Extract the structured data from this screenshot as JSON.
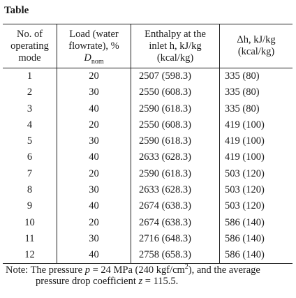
{
  "caption": "Table",
  "headers": {
    "mode": [
      "No. of",
      "operating",
      "mode"
    ],
    "load": [
      "Load (water",
      "flowrate), %"
    ],
    "load_symbol": "D",
    "load_symbol_sub": "nom",
    "enthalpy": [
      "Enthalpy at the",
      "inlet h, kJ/kg",
      "(kcal/kg)"
    ],
    "delta_h": [
      "Δh, kJ/kg",
      "(kcal/kg)"
    ]
  },
  "rows": [
    {
      "mode": "1",
      "load": "20",
      "enthalpy": "2507 (598.3)",
      "delta_h": "335 (80)"
    },
    {
      "mode": "2",
      "load": "30",
      "enthalpy": "2550 (608.3)",
      "delta_h": "335 (80)"
    },
    {
      "mode": "3",
      "load": "40",
      "enthalpy": "2590 (618.3)",
      "delta_h": "335 (80)"
    },
    {
      "mode": "4",
      "load": "20",
      "enthalpy": "2550 (608.3)",
      "delta_h": "419 (100)"
    },
    {
      "mode": "5",
      "load": "30",
      "enthalpy": "2590 (618.3)",
      "delta_h": "419 (100)"
    },
    {
      "mode": "6",
      "load": "40",
      "enthalpy": "2633 (628.3)",
      "delta_h": "419 (100)"
    },
    {
      "mode": "7",
      "load": "20",
      "enthalpy": "2590 (618.3)",
      "delta_h": "503 (120)"
    },
    {
      "mode": "8",
      "load": "30",
      "enthalpy": "2633 (628.3)",
      "delta_h": "503 (120)"
    },
    {
      "mode": "9",
      "load": "40",
      "enthalpy": "2674 (638.3)",
      "delta_h": "503 (120)"
    },
    {
      "mode": "10",
      "load": "20",
      "enthalpy": "2674 (638.3)",
      "delta_h": "586 (140)"
    },
    {
      "mode": "11",
      "load": "30",
      "enthalpy": "2716 (648.3)",
      "delta_h": "586 (140)"
    },
    {
      "mode": "12",
      "load": "40",
      "enthalpy": "2758 (658.3)",
      "delta_h": "586 (140)"
    }
  ],
  "note": {
    "prefix": "Note: The pressure ",
    "p_symbol": "p",
    "p_value": " = 24 MPa (240 kgf/cm",
    "p_exp": "2",
    "p_tail": "), and the average",
    "line2_prefix": "pressure drop coefficient ",
    "z_symbol": "z",
    "z_value": " = 115.5."
  }
}
